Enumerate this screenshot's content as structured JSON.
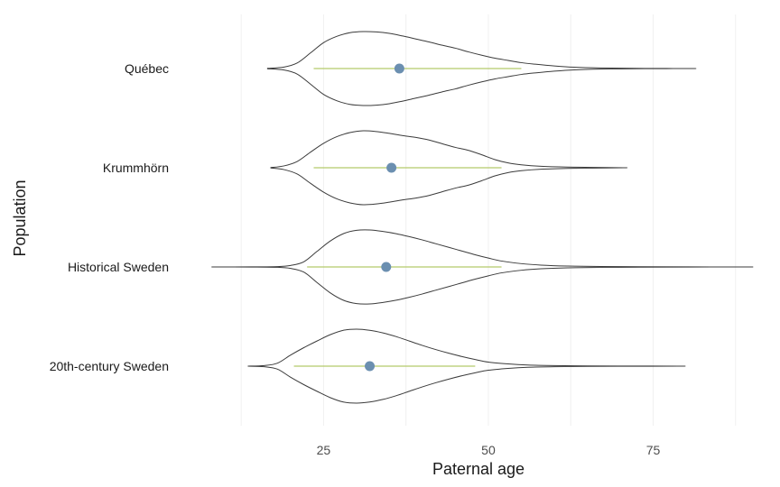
{
  "chart_data": {
    "type": "violin",
    "xlabel": "Paternal age",
    "ylabel": "Population",
    "xlim": [
      7,
      90
    ],
    "x_ticks": [
      25,
      50,
      75
    ],
    "grid": "vertical-faint",
    "legend": "none",
    "categories": [
      "Québec",
      "Krummhörn",
      "Historical Sweden",
      "20th-century Sweden"
    ],
    "series": [
      {
        "category": "Québec",
        "min": 16.5,
        "max": 81,
        "mean": 36.5,
        "range_low": 23.5,
        "range_high": 55,
        "density": [
          [
            16.5,
            0.005
          ],
          [
            19,
            0.04
          ],
          [
            21,
            0.15
          ],
          [
            23,
            0.42
          ],
          [
            25,
            0.7
          ],
          [
            27,
            0.87
          ],
          [
            29,
            0.97
          ],
          [
            31,
            1.0
          ],
          [
            33,
            0.99
          ],
          [
            35,
            0.95
          ],
          [
            37,
            0.88
          ],
          [
            39,
            0.8
          ],
          [
            41,
            0.72
          ],
          [
            43,
            0.63
          ],
          [
            45,
            0.55
          ],
          [
            47,
            0.45
          ],
          [
            49,
            0.36
          ],
          [
            51,
            0.28
          ],
          [
            53,
            0.22
          ],
          [
            55,
            0.16
          ],
          [
            57,
            0.12
          ],
          [
            60,
            0.07
          ],
          [
            63,
            0.035
          ],
          [
            67,
            0.015
          ],
          [
            72,
            0.006
          ],
          [
            77,
            0.002
          ],
          [
            81,
            0.0
          ]
        ]
      },
      {
        "category": "Krummhörn",
        "min": 17,
        "max": 70.5,
        "mean": 35.3,
        "range_low": 23.5,
        "range_high": 52,
        "density": [
          [
            17,
            0.005
          ],
          [
            19,
            0.05
          ],
          [
            21,
            0.17
          ],
          [
            23,
            0.42
          ],
          [
            25,
            0.66
          ],
          [
            27,
            0.84
          ],
          [
            29,
            0.95
          ],
          [
            31,
            1.0
          ],
          [
            33,
            0.98
          ],
          [
            35,
            0.93
          ],
          [
            37,
            0.87
          ],
          [
            39,
            0.82
          ],
          [
            41,
            0.75
          ],
          [
            43,
            0.65
          ],
          [
            45,
            0.55
          ],
          [
            47,
            0.47
          ],
          [
            49,
            0.35
          ],
          [
            51,
            0.22
          ],
          [
            53,
            0.13
          ],
          [
            55,
            0.08
          ],
          [
            58,
            0.04
          ],
          [
            62,
            0.018
          ],
          [
            66,
            0.008
          ],
          [
            70.5,
            0.0
          ]
        ]
      },
      {
        "category": "Historical Sweden",
        "min": 8,
        "max": 89,
        "mean": 34.5,
        "range_low": 22.5,
        "range_high": 52,
        "density": [
          [
            8,
            0.0
          ],
          [
            14,
            0.002
          ],
          [
            18,
            0.01
          ],
          [
            20,
            0.04
          ],
          [
            22,
            0.14
          ],
          [
            24,
            0.42
          ],
          [
            26,
            0.7
          ],
          [
            28,
            0.9
          ],
          [
            30,
            0.99
          ],
          [
            32,
            1.0
          ],
          [
            34,
            0.96
          ],
          [
            36,
            0.9
          ],
          [
            38,
            0.82
          ],
          [
            40,
            0.73
          ],
          [
            42,
            0.63
          ],
          [
            44,
            0.53
          ],
          [
            46,
            0.43
          ],
          [
            48,
            0.33
          ],
          [
            50,
            0.24
          ],
          [
            52,
            0.16
          ],
          [
            55,
            0.09
          ],
          [
            58,
            0.05
          ],
          [
            62,
            0.025
          ],
          [
            67,
            0.012
          ],
          [
            73,
            0.005
          ],
          [
            80,
            0.002
          ],
          [
            89,
            0.0
          ]
        ]
      },
      {
        "category": "20th-century Sweden",
        "min": 13.5,
        "max": 79,
        "mean": 32,
        "range_low": 20.5,
        "range_high": 48,
        "density": [
          [
            13.5,
            0.0
          ],
          [
            16,
            0.015
          ],
          [
            18,
            0.08
          ],
          [
            20,
            0.3
          ],
          [
            22,
            0.5
          ],
          [
            24,
            0.68
          ],
          [
            26,
            0.85
          ],
          [
            28,
            0.97
          ],
          [
            30,
            1.0
          ],
          [
            32,
            0.97
          ],
          [
            34,
            0.9
          ],
          [
            36,
            0.8
          ],
          [
            38,
            0.68
          ],
          [
            40,
            0.56
          ],
          [
            42,
            0.45
          ],
          [
            44,
            0.35
          ],
          [
            46,
            0.26
          ],
          [
            48,
            0.18
          ],
          [
            50,
            0.11
          ],
          [
            53,
            0.06
          ],
          [
            56,
            0.03
          ],
          [
            60,
            0.015
          ],
          [
            65,
            0.007
          ],
          [
            72,
            0.003
          ],
          [
            79,
            0.0
          ]
        ]
      }
    ]
  },
  "colors": {
    "violin_stroke": "#3b3b3b",
    "mean_point": "#6b8fb0",
    "range_line": "#b5c96a",
    "grid": "#f0f0f0",
    "background": "#ffffff"
  }
}
